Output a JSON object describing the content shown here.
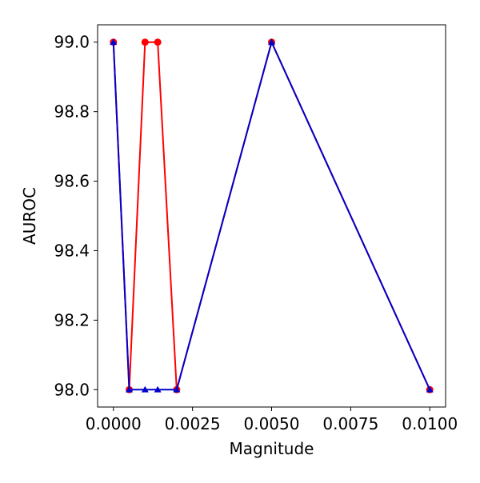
{
  "chart_data": {
    "type": "line",
    "xlabel": "Magnitude",
    "ylabel": "AUROC",
    "xlim": [
      -0.0005,
      0.0105
    ],
    "ylim": [
      97.95,
      99.05
    ],
    "x_ticks": [
      0.0,
      0.0025,
      0.005,
      0.0075,
      0.01
    ],
    "x_tick_labels": [
      "0.0000",
      "0.0025",
      "0.0050",
      "0.0075",
      "0.0100"
    ],
    "y_ticks": [
      98.0,
      98.2,
      98.4,
      98.6,
      98.8,
      99.0
    ],
    "y_tick_labels": [
      "98.0",
      "98.2",
      "98.4",
      "98.6",
      "98.8",
      "99.0"
    ],
    "grid": false,
    "series": [
      {
        "color": "#ff0000",
        "marker": "circle",
        "x": [
          0.0,
          0.0005,
          0.001,
          0.0014,
          0.002,
          0.005,
          0.01
        ],
        "y": [
          99.0,
          98.0,
          99.0,
          99.0,
          98.0,
          99.0,
          98.0
        ]
      },
      {
        "color": "#0000cc",
        "marker": "triangle",
        "x": [
          0.0,
          0.0005,
          0.001,
          0.0014,
          0.002,
          0.005,
          0.01
        ],
        "y": [
          99.0,
          98.0,
          98.0,
          98.0,
          98.0,
          99.0,
          98.0
        ]
      }
    ]
  }
}
